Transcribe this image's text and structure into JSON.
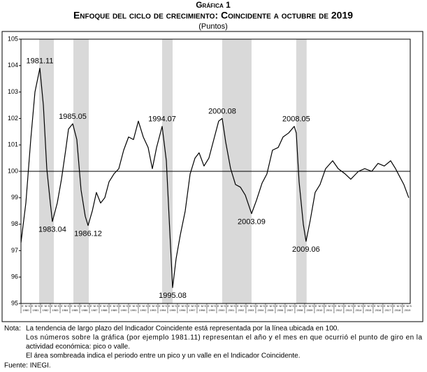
{
  "chart_data": {
    "type": "line",
    "kicker": "Gráfica 1",
    "title": "Enfoque del ciclo de crecimiento: Coincidente a octubre de 2019",
    "subtitle": "(Puntos)",
    "x": [
      1980.0,
      1980.5,
      1981.0,
      1981.43,
      1981.93,
      1982.29,
      1982.64,
      1983.0,
      1983.21,
      1983.71,
      1984.14,
      1984.57,
      1984.86,
      1985.29,
      1985.71,
      1986.14,
      1986.57,
      1986.86,
      1987.29,
      1987.71,
      1988.14,
      1988.57,
      1989.0,
      1989.5,
      1990.0,
      1990.5,
      1991.0,
      1991.5,
      1992.0,
      1992.5,
      1993.0,
      1993.43,
      1993.86,
      1994.43,
      1994.86,
      1995.21,
      1995.5,
      1995.86,
      1996.29,
      1996.79,
      1997.29,
      1997.79,
      1998.21,
      1998.71,
      1999.21,
      1999.71,
      2000.21,
      2000.57,
      2000.93,
      2001.43,
      2001.93,
      2002.43,
      2002.93,
      2003.57,
      2004.07,
      2004.64,
      2005.14,
      2005.71,
      2006.29,
      2006.79,
      2007.36,
      2007.93,
      2008.14,
      2008.43,
      2008.86,
      2009.14,
      2009.57,
      2010.07,
      2010.57,
      2011.14,
      2011.86,
      2012.43,
      2013.14,
      2013.71,
      2014.5,
      2015.14,
      2015.86,
      2016.5,
      2017.14,
      2017.79,
      2018.29,
      2018.71,
      2019.14,
      2019.64
    ],
    "values": [
      97.3,
      98.8,
      101.2,
      103.0,
      103.9,
      102.5,
      100.1,
      98.8,
      98.1,
      98.8,
      99.7,
      100.8,
      101.6,
      101.8,
      101.2,
      99.3,
      98.3,
      97.95,
      98.5,
      99.2,
      98.8,
      99.0,
      99.6,
      99.9,
      100.1,
      100.8,
      101.3,
      101.2,
      101.9,
      101.3,
      100.9,
      100.1,
      100.9,
      101.7,
      100.4,
      97.75,
      95.6,
      96.7,
      97.6,
      98.5,
      99.9,
      100.5,
      100.7,
      100.2,
      100.5,
      101.2,
      101.9,
      102.0,
      101.1,
      100.1,
      99.5,
      99.4,
      99.1,
      98.4,
      98.9,
      99.55,
      99.9,
      100.8,
      100.9,
      101.3,
      101.45,
      101.7,
      101.45,
      99.6,
      98.0,
      97.35,
      98.15,
      99.2,
      99.5,
      100.1,
      100.4,
      100.1,
      99.9,
      99.7,
      100.0,
      100.1,
      100.0,
      100.3,
      100.2,
      100.4,
      100.1,
      99.8,
      99.5,
      99.0
    ],
    "color": "#000000",
    "xlim": [
      1980,
      2019.79
    ],
    "ylim": [
      95,
      105
    ],
    "yticks": [
      95,
      96,
      97,
      98,
      99,
      100,
      101,
      102,
      103,
      104,
      105
    ],
    "xticks": [
      1980,
      1981,
      1982,
      1983,
      1984,
      1985,
      1986,
      1987,
      1988,
      1989,
      1990,
      1991,
      1992,
      1993,
      1994,
      1995,
      1996,
      1997,
      1998,
      1999,
      2000,
      2001,
      2002,
      2003,
      2004,
      2005,
      2006,
      2007,
      2008,
      2009,
      2010,
      2011,
      2012,
      2013,
      2014,
      2015,
      2016,
      2017,
      2018,
      2019
    ],
    "month_labels": [
      "E",
      "M",
      "S"
    ],
    "reference_line": 100,
    "shaded": [
      [
        1981.86,
        1983.36
      ],
      [
        1985.36,
        1986.93
      ],
      [
        1994.43,
        1995.5
      ],
      [
        2000.57,
        2003.57
      ],
      [
        2008.14,
        2009.2
      ]
    ],
    "shade_color": "#d9d9d9",
    "annotations": [
      {
        "label": "1981.11",
        "x": 1981.93,
        "y": 103.9,
        "position": "above"
      },
      {
        "label": "1983.04",
        "x": 1983.21,
        "y": 98.1,
        "position": "below"
      },
      {
        "label": "1985.05",
        "x": 1985.29,
        "y": 101.8,
        "position": "above"
      },
      {
        "label": "1986.12",
        "x": 1986.86,
        "y": 97.95,
        "position": "below"
      },
      {
        "label": "1994.07",
        "x": 1994.43,
        "y": 101.7,
        "position": "above"
      },
      {
        "label": "1995.08",
        "x": 1995.5,
        "y": 95.6,
        "position": "below"
      },
      {
        "label": "2000.08",
        "x": 2000.57,
        "y": 102.0,
        "position": "above"
      },
      {
        "label": "2003.09",
        "x": 2003.57,
        "y": 98.4,
        "position": "below"
      },
      {
        "label": "2008.05",
        "x": 2008.14,
        "y": 101.7,
        "position": "above"
      },
      {
        "label": "2009.06",
        "x": 2009.14,
        "y": 97.35,
        "position": "below"
      }
    ],
    "notes": {
      "label": "Nota:",
      "lines": [
        "La tendencia de largo plazo del Indicador Coincidente está representada por la línea ubicada en 100.",
        "Los números sobre la gráfica (por ejemplo 1981.11) representan el año y el mes en que ocurrió el punto de giro en la",
        "actividad económica: pico o valle.",
        "El área sombreada indica el periodo entre un pico y un valle en el Indicador Coincidente."
      ]
    },
    "source": "Fuente: INEGI."
  }
}
